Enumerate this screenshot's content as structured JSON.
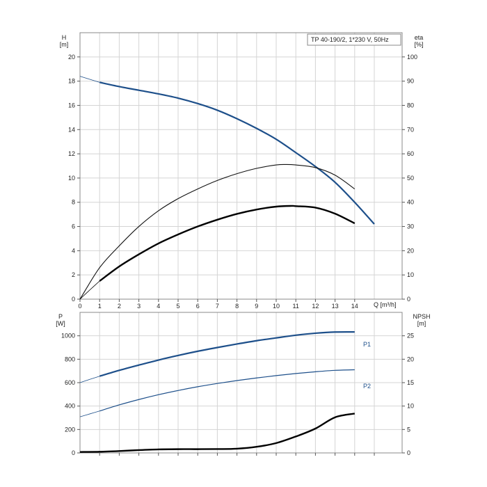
{
  "chart_data": [
    {
      "type": "line",
      "title": "TP 40-190/2, 1*230 V, 50Hz",
      "xlabel": "Q [m³/h]",
      "ylabel": "H",
      "ylabel_unit": "[m]",
      "y2label": "eta",
      "y2label_unit": "[%]",
      "xlim": [
        0,
        15
      ],
      "ylim": [
        0,
        22
      ],
      "y2lim": [
        0,
        110
      ],
      "xticks": [
        "0",
        "1",
        "2",
        "3",
        "4",
        "5",
        "6",
        "7",
        "8",
        "9",
        "10",
        "11",
        "12",
        "13",
        "14"
      ],
      "yticks": [
        "0",
        "2",
        "4",
        "6",
        "8",
        "10",
        "12",
        "14",
        "16",
        "18",
        "20"
      ],
      "y2ticks": [
        "0",
        "10",
        "20",
        "30",
        "40",
        "50",
        "60",
        "70",
        "80",
        "90",
        "100"
      ],
      "grid": true,
      "series": [
        {
          "axis": "left",
          "color": "#1d4f8a",
          "x": [
            1,
            2,
            3,
            4,
            5,
            6,
            7,
            8,
            9,
            10,
            11,
            12,
            13,
            14,
            15
          ],
          "y": [
            17.9,
            17.55,
            17.25,
            16.95,
            16.6,
            16.15,
            15.6,
            14.9,
            14.1,
            13.2,
            12.1,
            10.95,
            9.65,
            8.0,
            6.2
          ],
          "x_thin": [
            0,
            0.5,
            1
          ],
          "y_thin": [
            18.4,
            18.15,
            17.9
          ]
        },
        {
          "axis": "right",
          "color": "#111111",
          "x": [
            0,
            1,
            2,
            3,
            4,
            5,
            6,
            7,
            8,
            9,
            10,
            10.5,
            11,
            12,
            13,
            14
          ],
          "y": [
            0,
            13,
            22,
            30,
            36.5,
            41.5,
            45.5,
            49,
            51.8,
            54,
            55.4,
            55.6,
            55.4,
            54.3,
            51.2,
            45.5
          ]
        },
        {
          "axis": "right",
          "color": "#000000",
          "bold": true,
          "x": [
            1,
            2,
            3,
            4,
            5,
            6,
            7,
            8,
            9,
            10,
            10.8,
            11,
            12,
            13,
            14
          ],
          "y": [
            7.5,
            13.5,
            18.5,
            23,
            26.7,
            30,
            32.8,
            35.2,
            37,
            38.2,
            38.5,
            38.4,
            37.8,
            35.3,
            31.3
          ],
          "x_thin": [
            0,
            0.5,
            1
          ],
          "y_thin": [
            0,
            3.8,
            7.5
          ]
        }
      ]
    },
    {
      "type": "line",
      "ylabel": "P",
      "ylabel_unit": "[W]",
      "y2label": "NPSH",
      "y2label_unit": "[m]",
      "xlim": [
        0,
        15
      ],
      "ylim": [
        0,
        1200
      ],
      "y2lim": [
        0,
        30
      ],
      "yticks": [
        "0",
        "200",
        "400",
        "600",
        "800",
        "1000"
      ],
      "y2ticks": [
        "0",
        "5",
        "10",
        "15",
        "20",
        "25"
      ],
      "grid": true,
      "series": [
        {
          "name": "P1",
          "axis": "left",
          "color": "#1d4f8a",
          "x": [
            1,
            2,
            3,
            4,
            5,
            6,
            7,
            8,
            9,
            10,
            11,
            12,
            13,
            14
          ],
          "y": [
            655,
            705,
            750,
            793,
            832,
            868,
            900,
            930,
            958,
            982,
            1005,
            1022,
            1032,
            1033
          ],
          "x_thin": [
            0,
            0.5,
            1
          ],
          "y_thin": [
            600,
            628,
            655
          ]
        },
        {
          "name": "P2",
          "axis": "left",
          "color": "#1d4f8a",
          "x": [
            1,
            2,
            3,
            4,
            5,
            6,
            7,
            8,
            9,
            10,
            11,
            12,
            13,
            14
          ],
          "y": [
            358,
            410,
            456,
            497,
            533,
            565,
            593,
            618,
            640,
            660,
            678,
            693,
            705,
            710
          ],
          "x_thin": [
            0,
            0.5,
            1
          ],
          "y_thin": [
            308,
            333,
            358
          ]
        },
        {
          "axis": "right",
          "color": "#000000",
          "bold": true,
          "x": [
            0,
            1,
            2,
            3,
            4,
            5,
            6,
            7,
            8,
            9,
            10,
            11,
            12,
            13,
            14
          ],
          "y": [
            0.2,
            0.25,
            0.4,
            0.6,
            0.75,
            0.8,
            0.8,
            0.82,
            0.9,
            1.3,
            2.1,
            3.5,
            5.2,
            7.6,
            8.4
          ]
        }
      ]
    }
  ]
}
